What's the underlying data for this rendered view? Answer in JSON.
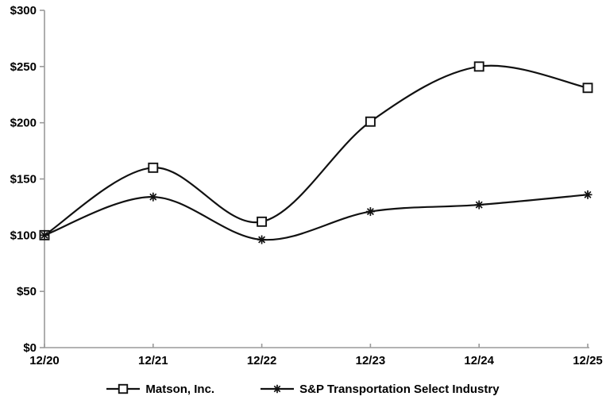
{
  "chart_data": {
    "type": "line",
    "title": "",
    "categories": [
      "12/20",
      "12/21",
      "12/22",
      "12/23",
      "12/24",
      "12/25"
    ],
    "series": [
      {
        "name": "Matson, Inc.",
        "marker": "square",
        "values": [
          100,
          160,
          112,
          201,
          250,
          231
        ]
      },
      {
        "name": "S&P Transportation Select Industry",
        "marker": "asterisk",
        "values": [
          100,
          134,
          96,
          121,
          127,
          136
        ]
      }
    ],
    "xlabel": "",
    "ylabel": "",
    "ylim": [
      0,
      300
    ],
    "y_tick_values": [
      0,
      50,
      100,
      150,
      200,
      250,
      300
    ],
    "y_tick_labels": [
      "$0",
      "$50",
      "$100",
      "$150",
      "$200",
      "$250",
      "$300"
    ],
    "grid": false,
    "legend_position": "bottom",
    "colors": {
      "line": "#111111",
      "marker_stroke": "#111111",
      "marker_fill": "#ffffff",
      "axis": "#9a9a9a",
      "text": "#000000",
      "background": "#ffffff"
    }
  }
}
